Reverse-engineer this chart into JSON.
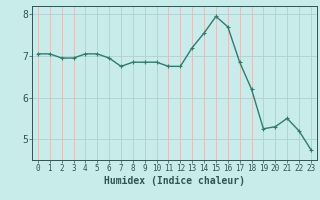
{
  "x": [
    0,
    1,
    2,
    3,
    4,
    5,
    6,
    7,
    8,
    9,
    10,
    11,
    12,
    13,
    14,
    15,
    16,
    17,
    18,
    19,
    20,
    21,
    22,
    23
  ],
  "y": [
    7.05,
    7.05,
    6.95,
    6.95,
    7.05,
    7.05,
    6.95,
    6.75,
    6.85,
    6.85,
    6.85,
    6.75,
    6.75,
    7.2,
    7.55,
    7.95,
    7.7,
    6.85,
    6.2,
    5.25,
    5.3,
    5.5,
    5.2,
    4.75
  ],
  "line_color": "#2d7d6e",
  "marker_color": "#2d7d6e",
  "bg_color": "#c8ecea",
  "grid_color_major": "#b0d0d0",
  "grid_color_minor": "#e8b8b8",
  "xlabel": "Humidex (Indice chaleur)",
  "xlabel_color": "#2d5555",
  "tick_color": "#2d5555",
  "ylim": [
    4.5,
    8.2
  ],
  "xlim": [
    -0.5,
    23.5
  ],
  "yticks": [
    5,
    6,
    7,
    8
  ],
  "xticks": [
    0,
    1,
    2,
    3,
    4,
    5,
    6,
    7,
    8,
    9,
    10,
    11,
    12,
    13,
    14,
    15,
    16,
    17,
    18,
    19,
    20,
    21,
    22,
    23
  ],
  "marker_size": 2.5,
  "line_width": 1.0,
  "font_size": 7
}
